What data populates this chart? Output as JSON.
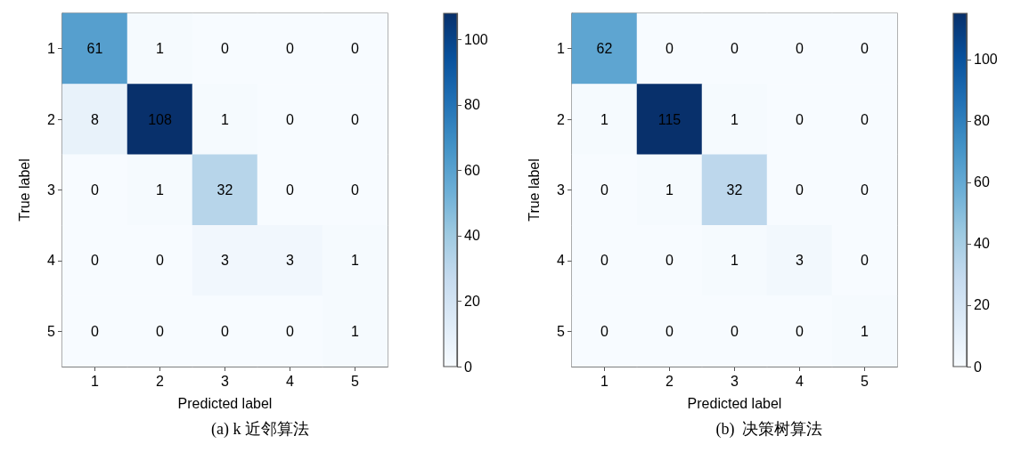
{
  "chart_data": [
    {
      "type": "heatmap",
      "title": "(a) k 近邻算法",
      "xlabel": "Predicted label",
      "ylabel": "True label",
      "categories": [
        "1",
        "2",
        "3",
        "4",
        "5"
      ],
      "y_categories": [
        "1",
        "2",
        "3",
        "4",
        "5"
      ],
      "cells": [
        [
          61,
          1,
          0,
          0,
          0
        ],
        [
          8,
          108,
          1,
          0,
          0
        ],
        [
          0,
          1,
          32,
          0,
          0
        ],
        [
          0,
          0,
          3,
          3,
          1
        ],
        [
          0,
          0,
          0,
          0,
          1
        ]
      ],
      "clim": [
        0,
        108
      ],
      "cticks": [
        0,
        20,
        40,
        60,
        80,
        100
      ],
      "data_labels": true,
      "grid": false
    },
    {
      "type": "heatmap",
      "title": "(b)  决策树算法",
      "xlabel": "Predicted label",
      "ylabel": "True label",
      "categories": [
        "1",
        "2",
        "3",
        "4",
        "5"
      ],
      "y_categories": [
        "1",
        "2",
        "3",
        "4",
        "5"
      ],
      "cells": [
        [
          62,
          0,
          0,
          0,
          0
        ],
        [
          1,
          115,
          1,
          0,
          0
        ],
        [
          0,
          1,
          32,
          0,
          0
        ],
        [
          0,
          0,
          1,
          3,
          0
        ],
        [
          0,
          0,
          0,
          0,
          1
        ]
      ],
      "clim": [
        0,
        115
      ],
      "cticks": [
        0,
        20,
        40,
        60,
        80,
        100
      ],
      "data_labels": true,
      "grid": false
    }
  ]
}
